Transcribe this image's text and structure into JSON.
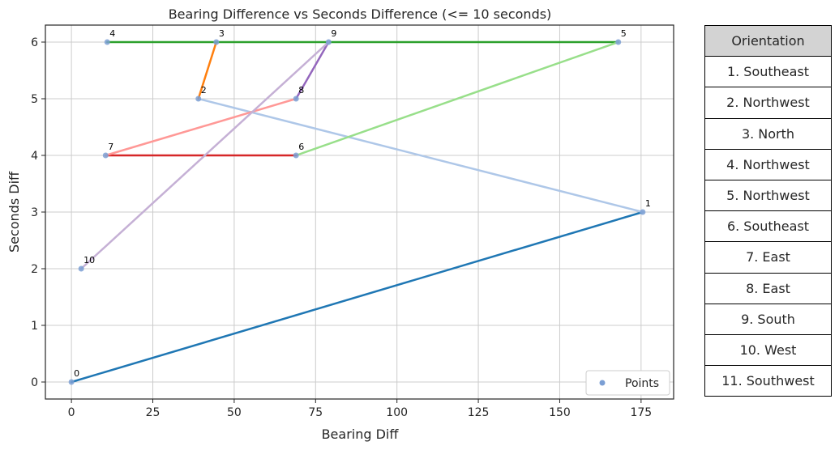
{
  "chart_data": {
    "type": "line",
    "title": "Bearing Difference vs Seconds Difference (<= 10 seconds)",
    "xlabel": "Bearing Diff",
    "ylabel": "Seconds Diff",
    "xlim": [
      -8,
      185
    ],
    "ylim": [
      -0.3,
      6.3
    ],
    "xticks": [
      0,
      25,
      50,
      75,
      100,
      125,
      150,
      175
    ],
    "yticks": [
      0,
      1,
      2,
      3,
      4,
      5,
      6
    ],
    "grid": true,
    "legend": {
      "placement": "lower-right",
      "entries": [
        "Points"
      ]
    },
    "points": [
      {
        "label": "0",
        "x": 0,
        "y": 0
      },
      {
        "label": "1",
        "x": 175.5,
        "y": 3
      },
      {
        "label": "2",
        "x": 39,
        "y": 5
      },
      {
        "label": "3",
        "x": 44.5,
        "y": 6
      },
      {
        "label": "4",
        "x": 11,
        "y": 6
      },
      {
        "label": "5",
        "x": 168,
        "y": 6
      },
      {
        "label": "6",
        "x": 69,
        "y": 4
      },
      {
        "label": "7",
        "x": 10.5,
        "y": 4
      },
      {
        "label": "8",
        "x": 69,
        "y": 5
      },
      {
        "label": "9",
        "x": 79,
        "y": 6
      },
      {
        "label": "10",
        "x": 3,
        "y": 2
      }
    ],
    "segments": [
      {
        "from": 0,
        "to": 1,
        "color": "#1f77b4"
      },
      {
        "from": 1,
        "to": 2,
        "color": "#aec7e8"
      },
      {
        "from": 2,
        "to": 3,
        "color": "#ff7f0e"
      },
      {
        "from": 4,
        "to": 5,
        "color": "#2ca02c"
      },
      {
        "from": 5,
        "to": 6,
        "color": "#98df8a"
      },
      {
        "from": 6,
        "to": 7,
        "color": "#d62728"
      },
      {
        "from": 7,
        "to": 8,
        "color": "#ff9896"
      },
      {
        "from": 8,
        "to": 9,
        "color": "#9467bd"
      },
      {
        "from": 9,
        "to": 10,
        "color": "#c5b0d5"
      }
    ],
    "point_color": "#7b9fd4"
  },
  "orientation_table": {
    "header": "Orientation",
    "rows": [
      "1. Southeast",
      "2. Northwest",
      "3. North",
      "4. Northwest",
      "5. Northwest",
      "6. Southeast",
      "7. East",
      "8. East",
      "9. South",
      "10. West",
      "11. Southwest"
    ]
  }
}
